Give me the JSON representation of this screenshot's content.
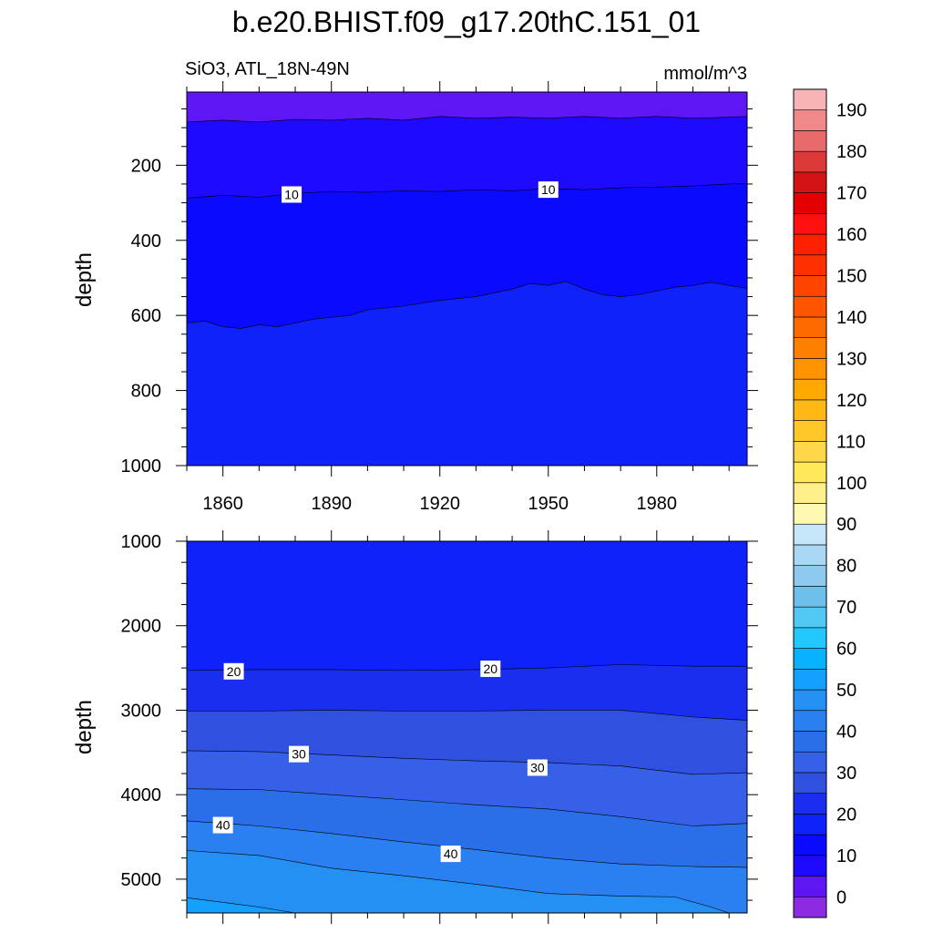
{
  "page": {
    "title": "b.e20.BHIST.f09_g17.20thC.151_01"
  },
  "chart_data": {
    "type": "contour",
    "variable_label": "SiO3, ATL_18N-49N",
    "units": "mmol/m^3",
    "x_range": [
      1850,
      2005
    ],
    "x_ticks": [
      "1860",
      "1890",
      "1920",
      "1950",
      "1980"
    ],
    "x_tick_values": [
      1860,
      1890,
      1920,
      1950,
      1980
    ],
    "panels": [
      {
        "ylabel": "depth",
        "ylim": [
          0,
          1000
        ],
        "y_plot_range": [
          5,
          1000
        ],
        "y_ticks": [
          "200",
          "400",
          "600",
          "800",
          "1000"
        ],
        "y_tick_values": [
          200,
          400,
          600,
          800,
          1000
        ],
        "contours": [
          {
            "level": 5,
            "depth": [
              [
                1850,
                85
              ],
              [
                1860,
                80
              ],
              [
                1870,
                85
              ],
              [
                1880,
                78
              ],
              [
                1890,
                80
              ],
              [
                1900,
                75
              ],
              [
                1910,
                80
              ],
              [
                1920,
                70
              ],
              [
                1930,
                75
              ],
              [
                1940,
                72
              ],
              [
                1950,
                75
              ],
              [
                1960,
                70
              ],
              [
                1970,
                75
              ],
              [
                1980,
                70
              ],
              [
                1990,
                75
              ],
              [
                2000,
                72
              ],
              [
                2005,
                70
              ]
            ]
          },
          {
            "level": 10,
            "depth": [
              [
                1850,
                288
              ],
              [
                1860,
                280
              ],
              [
                1870,
                285
              ],
              [
                1880,
                275
              ],
              [
                1890,
                270
              ],
              [
                1900,
                272
              ],
              [
                1910,
                268
              ],
              [
                1920,
                270
              ],
              [
                1930,
                265
              ],
              [
                1940,
                268
              ],
              [
                1950,
                262
              ],
              [
                1960,
                265
              ],
              [
                1970,
                260
              ],
              [
                1980,
                258
              ],
              [
                1990,
                255
              ],
              [
                2000,
                250
              ],
              [
                2005,
                248
              ]
            ]
          },
          {
            "level": 15,
            "depth": [
              [
                1850,
                620
              ],
              [
                1855,
                615
              ],
              [
                1860,
                630
              ],
              [
                1865,
                635
              ],
              [
                1870,
                625
              ],
              [
                1875,
                630
              ],
              [
                1880,
                620
              ],
              [
                1885,
                610
              ],
              [
                1890,
                605
              ],
              [
                1895,
                600
              ],
              [
                1900,
                585
              ],
              [
                1910,
                575
              ],
              [
                1920,
                560
              ],
              [
                1930,
                550
              ],
              [
                1940,
                530
              ],
              [
                1945,
                515
              ],
              [
                1950,
                520
              ],
              [
                1955,
                510
              ],
              [
                1960,
                530
              ],
              [
                1965,
                545
              ],
              [
                1970,
                550
              ],
              [
                1975,
                545
              ],
              [
                1980,
                535
              ],
              [
                1985,
                525
              ],
              [
                1990,
                520
              ],
              [
                1995,
                512
              ],
              [
                2000,
                520
              ],
              [
                2005,
                528
              ]
            ]
          }
        ],
        "contour_labels": [
          {
            "text": "10",
            "x": 1879,
            "y": 278
          },
          {
            "text": "10",
            "x": 1950,
            "y": 265
          }
        ]
      },
      {
        "ylabel": "depth",
        "ylim": [
          1000,
          5400
        ],
        "y_ticks": [
          "1000",
          "2000",
          "3000",
          "4000",
          "5000"
        ],
        "y_tick_values": [
          1000,
          2000,
          3000,
          4000,
          5000
        ],
        "contours": [
          {
            "level": 20,
            "depth": [
              [
                1850,
                2530
              ],
              [
                1870,
                2520
              ],
              [
                1890,
                2520
              ],
              [
                1910,
                2530
              ],
              [
                1930,
                2520
              ],
              [
                1950,
                2500
              ],
              [
                1970,
                2460
              ],
              [
                1990,
                2480
              ],
              [
                2005,
                2480
              ]
            ]
          },
          {
            "level": 25,
            "depth": [
              [
                1850,
                3010
              ],
              [
                1870,
                3010
              ],
              [
                1890,
                3000
              ],
              [
                1910,
                3010
              ],
              [
                1930,
                3010
              ],
              [
                1950,
                3000
              ],
              [
                1970,
                3000
              ],
              [
                1990,
                3080
              ],
              [
                2005,
                3120
              ]
            ]
          },
          {
            "level": 30,
            "depth": [
              [
                1850,
                3480
              ],
              [
                1870,
                3490
              ],
              [
                1890,
                3530
              ],
              [
                1910,
                3570
              ],
              [
                1930,
                3600
              ],
              [
                1950,
                3620
              ],
              [
                1970,
                3660
              ],
              [
                1990,
                3760
              ],
              [
                2005,
                3740
              ]
            ]
          },
          {
            "level": 35,
            "depth": [
              [
                1850,
                3930
              ],
              [
                1870,
                3940
              ],
              [
                1890,
                4000
              ],
              [
                1910,
                4060
              ],
              [
                1930,
                4120
              ],
              [
                1950,
                4170
              ],
              [
                1970,
                4260
              ],
              [
                1990,
                4370
              ],
              [
                2005,
                4340
              ]
            ]
          },
          {
            "level": 40,
            "depth": [
              [
                1850,
                4310
              ],
              [
                1870,
                4370
              ],
              [
                1890,
                4460
              ],
              [
                1910,
                4560
              ],
              [
                1930,
                4650
              ],
              [
                1950,
                4750
              ],
              [
                1970,
                4820
              ],
              [
                1990,
                4850
              ],
              [
                2005,
                4860
              ]
            ]
          },
          {
            "level": 45,
            "depth": [
              [
                1850,
                4660
              ],
              [
                1870,
                4720
              ],
              [
                1890,
                4870
              ],
              [
                1910,
                4960
              ],
              [
                1930,
                5060
              ],
              [
                1950,
                5170
              ],
              [
                1970,
                5200
              ],
              [
                1985,
                5210
              ],
              [
                1995,
                5330
              ],
              [
                2000,
                5400
              ]
            ]
          },
          {
            "level": 50,
            "depth": [
              [
                1850,
                5220
              ],
              [
                1870,
                5330
              ],
              [
                1880,
                5400
              ]
            ]
          }
        ],
        "contour_labels": [
          {
            "text": "20",
            "x": 1863,
            "y": 2540
          },
          {
            "text": "20",
            "x": 1934,
            "y": 2510
          },
          {
            "text": "30",
            "x": 1881,
            "y": 3520
          },
          {
            "text": "30",
            "x": 1947,
            "y": 3680
          },
          {
            "text": "40",
            "x": 1860,
            "y": 4360
          },
          {
            "text": "40",
            "x": 1923,
            "y": 4700
          }
        ]
      }
    ],
    "colorbar": {
      "levels": [
        -5,
        0,
        5,
        10,
        15,
        20,
        25,
        30,
        35,
        40,
        45,
        50,
        55,
        60,
        65,
        70,
        75,
        80,
        85,
        90,
        95,
        100,
        105,
        110,
        115,
        120,
        125,
        130,
        135,
        140,
        145,
        150,
        155,
        160,
        165,
        170,
        175,
        180,
        185,
        190,
        195
      ],
      "colors": [
        "#8d2be2",
        "#5e17f4",
        "#1e0aff",
        "#0a0aff",
        "#0f22f9",
        "#1a2ef0",
        "#3050e0",
        "#3660e8",
        "#2a6fe8",
        "#2a80f0",
        "#2590f4",
        "#14a0ff",
        "#08b2ff",
        "#22c8ff",
        "#52c8f4",
        "#6ec0ec",
        "#8ecaf0",
        "#a8d8f4",
        "#c4e6f8",
        "#fff8b0",
        "#fff08a",
        "#ffe85a",
        "#ffd84a",
        "#ffc828",
        "#ffb814",
        "#ffa800",
        "#ff9400",
        "#ff8000",
        "#ff6a00",
        "#ff5500",
        "#ff4400",
        "#ff3000",
        "#ff2000",
        "#ff1010",
        "#e40000",
        "#d41414",
        "#dc3838",
        "#e86a6a",
        "#f08a8a",
        "#f8b4b4"
      ],
      "tick_labels": [
        "0",
        "10",
        "20",
        "30",
        "40",
        "50",
        "60",
        "70",
        "80",
        "90",
        "100",
        "110",
        "120",
        "130",
        "140",
        "150",
        "160",
        "170",
        "180",
        "190"
      ],
      "tick_values": [
        0,
        10,
        20,
        30,
        40,
        50,
        60,
        70,
        80,
        90,
        100,
        110,
        120,
        130,
        140,
        150,
        160,
        170,
        180,
        190
      ]
    }
  }
}
